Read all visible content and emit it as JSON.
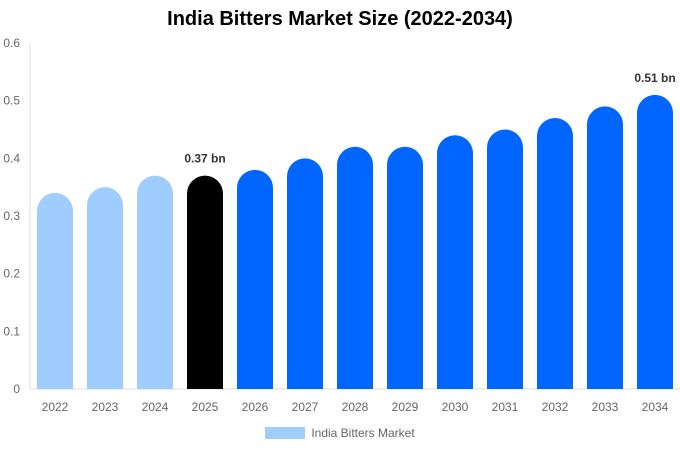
{
  "chart_data": {
    "type": "bar",
    "title": "India Bitters Market Size (2022-2034)",
    "categories": [
      "2022",
      "2023",
      "2024",
      "2025",
      "2026",
      "2027",
      "2028",
      "2029",
      "2030",
      "2031",
      "2032",
      "2033",
      "2034"
    ],
    "series": [
      {
        "name": "India Bitters Market",
        "values": [
          0.34,
          0.35,
          0.37,
          0.37,
          0.38,
          0.4,
          0.42,
          0.42,
          0.44,
          0.45,
          0.47,
          0.49,
          0.51
        ]
      }
    ],
    "bar_colors": [
      "#a0cdff",
      "#a0cdff",
      "#a0cdff",
      "#000000",
      "#0066ff",
      "#0066ff",
      "#0066ff",
      "#0066ff",
      "#0066ff",
      "#0066ff",
      "#0066ff",
      "#0066ff",
      "#0066ff"
    ],
    "data_labels": [
      {
        "category": "2025",
        "text": "0.37 bn"
      },
      {
        "category": "2034",
        "text": "0.51 bn"
      }
    ],
    "ylim": [
      0,
      0.6
    ],
    "yticks": [
      "0",
      "0.1",
      "0.2",
      "0.3",
      "0.4",
      "0.5",
      "0.6"
    ],
    "xlabel": "",
    "ylabel": "",
    "grid": false,
    "legend": "bottom"
  }
}
